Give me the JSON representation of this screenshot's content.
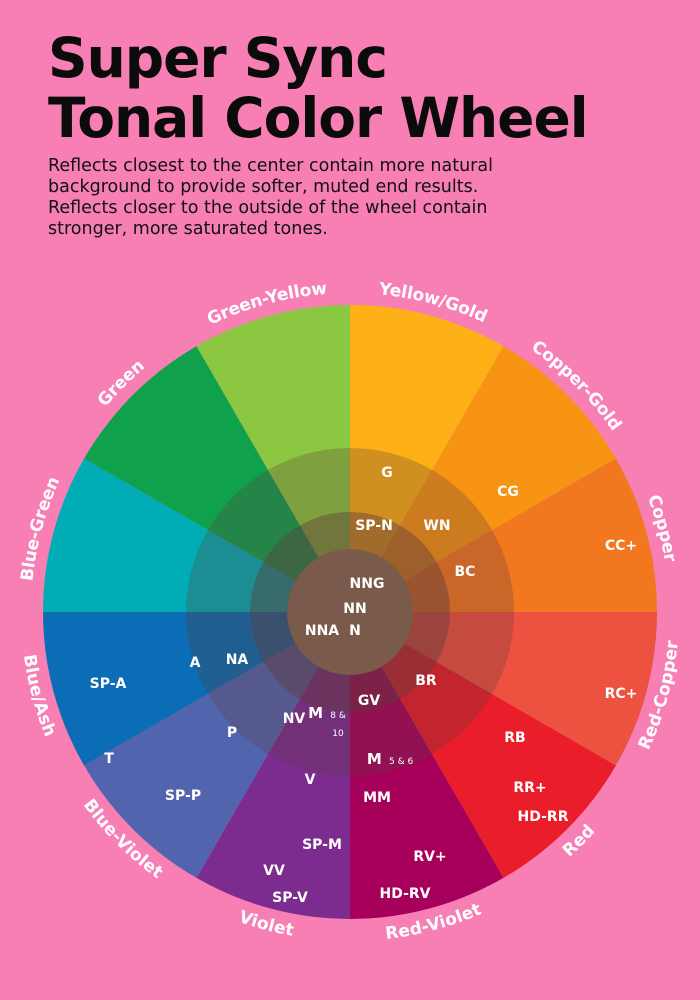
{
  "header": {
    "title_line1": "Super Sync",
    "title_line2": "Tonal Color Wheel",
    "description_lines": [
      "Reflects closest to the center contain more natural",
      "background to provide softer, muted end results.",
      "Reflects closer to the outside of the wheel contain",
      "stronger, more saturated tones."
    ]
  },
  "wheel": {
    "background_color": "#f77fb4",
    "outer_segments": [
      {
        "id": "yellow-gold",
        "label": "Yellow/Gold",
        "color": "#fdb116"
      },
      {
        "id": "copper-gold",
        "label": "Copper-Gold",
        "color": "#f79414"
      },
      {
        "id": "copper",
        "label": "Copper",
        "color": "#f27820"
      },
      {
        "id": "red-copper",
        "label": "Red-Copper",
        "color": "#ed5140"
      },
      {
        "id": "red",
        "label": "Red",
        "color": "#ea1d2a"
      },
      {
        "id": "red-violet",
        "label": "Red-Violet",
        "color": "#a7005a"
      },
      {
        "id": "violet",
        "label": "Violet",
        "color": "#7c2c8f"
      },
      {
        "id": "blue-violet",
        "label": "Blue-Violet",
        "color": "#5264ad"
      },
      {
        "id": "blue-ash",
        "label": "Blue/Ash",
        "color": "#0a6db5"
      },
      {
        "id": "blue-green",
        "label": "Blue-Green",
        "color": "#00adb5"
      },
      {
        "id": "green",
        "label": "Green",
        "color": "#10a14d"
      },
      {
        "id": "green-yellow",
        "label": "Green-Yellow",
        "color": "#8bc740"
      }
    ],
    "shades": {
      "middle_ring": "rgba(95,60,60,0.28)",
      "inner_ring": "rgba(95,60,60,0.42)",
      "center": "#7a5a4a"
    },
    "shade_codes": [
      "G",
      "CG",
      "CC+",
      "RC+",
      "RB",
      "RR+",
      "HD-RR",
      "RV+",
      "HD-RV",
      "SP-M",
      "VV",
      "SP-V",
      "SP-P",
      "T",
      "SP-A",
      "A",
      "NA",
      "SP-N",
      "WN",
      "BC",
      "BR",
      "GV",
      "MM",
      "V",
      "P",
      "NV",
      "NNG",
      "NN",
      "NNA",
      "N"
    ],
    "small_codes": [
      {
        "main": "M",
        "sub": "8 &",
        "sub2": "10"
      },
      {
        "main": "M",
        "sub": "5 & 6"
      }
    ]
  }
}
